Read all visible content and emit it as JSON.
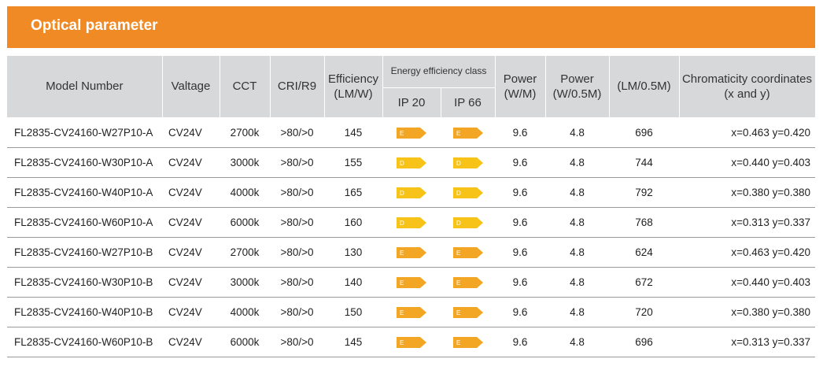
{
  "title": "Optical parameter",
  "colors": {
    "banner": "#f08a24",
    "header_bg": "#d7d8da",
    "class_E": "#f3a623",
    "class_D": "#f7c318"
  },
  "headers": {
    "model": "Model Number",
    "voltage": "Valtage",
    "cct": "CCT",
    "cri": "CRI/R9",
    "efficiency": "Efficiency (LM/W)",
    "energy_class": "Energy efficiency class",
    "ip20": "IP 20",
    "ip66": "IP 66",
    "power_m": "Power (W/M)",
    "power_half": "Power (W/0.5M)",
    "lm_half": "(LM/0.5M)",
    "chromaticity": "Chromaticity coordinates (x and y)"
  },
  "rows": [
    {
      "model": "FL2835-CV24160-W27P10-A",
      "voltage": "CV24V",
      "cct": "2700k",
      "cri": ">80/>0",
      "efficiency": "145",
      "ip20": "E",
      "ip66": "E",
      "power_m": "9.6",
      "power_half": "4.8",
      "lm": "696",
      "chromaticity": "x=0.463 y=0.420"
    },
    {
      "model": "FL2835-CV24160-W30P10-A",
      "voltage": "CV24V",
      "cct": "3000k",
      "cri": ">80/>0",
      "efficiency": "155",
      "ip20": "D",
      "ip66": "D",
      "power_m": "9.6",
      "power_half": "4.8",
      "lm": "744",
      "chromaticity": "x=0.440 y=0.403"
    },
    {
      "model": "FL2835-CV24160-W40P10-A",
      "voltage": "CV24V",
      "cct": "4000k",
      "cri": ">80/>0",
      "efficiency": "165",
      "ip20": "D",
      "ip66": "D",
      "power_m": "9.6",
      "power_half": "4.8",
      "lm": "792",
      "chromaticity": "x=0.380 y=0.380"
    },
    {
      "model": "FL2835-CV24160-W60P10-A",
      "voltage": "CV24V",
      "cct": "6000k",
      "cri": ">80/>0",
      "efficiency": "160",
      "ip20": "D",
      "ip66": "D",
      "power_m": "9.6",
      "power_half": "4.8",
      "lm": "768",
      "chromaticity": "x=0.313 y=0.337"
    },
    {
      "model": "FL2835-CV24160-W27P10-B",
      "voltage": "CV24V",
      "cct": "2700k",
      "cri": ">80/>0",
      "efficiency": "130",
      "ip20": "E",
      "ip66": "E",
      "power_m": "9.6",
      "power_half": "4.8",
      "lm": "624",
      "chromaticity": "x=0.463 y=0.420"
    },
    {
      "model": "FL2835-CV24160-W30P10-B",
      "voltage": "CV24V",
      "cct": "3000k",
      "cri": ">80/>0",
      "efficiency": "140",
      "ip20": "E",
      "ip66": "E",
      "power_m": "9.6",
      "power_half": "4.8",
      "lm": "672",
      "chromaticity": "x=0.440 y=0.403"
    },
    {
      "model": "FL2835-CV24160-W40P10-B",
      "voltage": "CV24V",
      "cct": "4000k",
      "cri": ">80/>0",
      "efficiency": "150",
      "ip20": "E",
      "ip66": "E",
      "power_m": "9.6",
      "power_half": "4.8",
      "lm": "720",
      "chromaticity": "x=0.380 y=0.380"
    },
    {
      "model": "FL2835-CV24160-W60P10-B",
      "voltage": "CV24V",
      "cct": "6000k",
      "cri": ">80/>0",
      "efficiency": "145",
      "ip20": "E",
      "ip66": "E",
      "power_m": "9.6",
      "power_half": "4.8",
      "lm": "696",
      "chromaticity": "x=0.313 y=0.337"
    }
  ]
}
